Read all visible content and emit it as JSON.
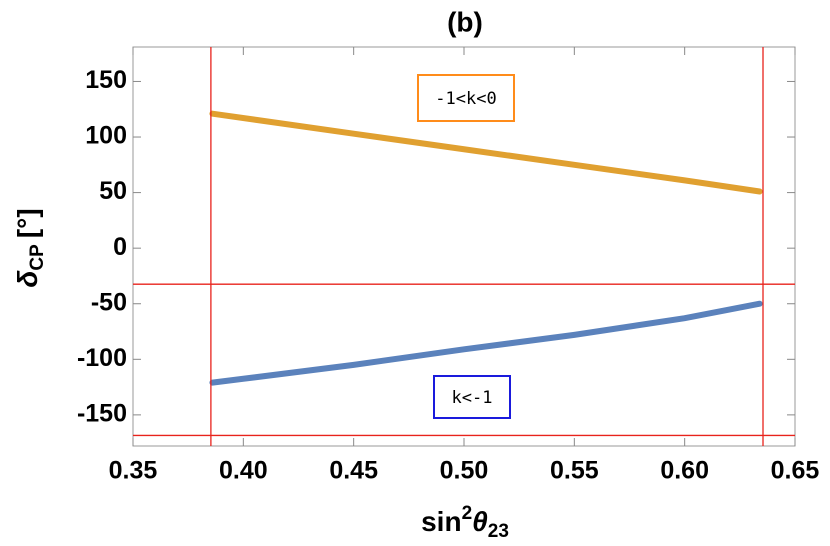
{
  "chart_data": {
    "type": "scatter",
    "title": "(b)",
    "x_label": {
      "base": "sin",
      "sup": "2",
      "symbol": "θ",
      "sub": "23"
    },
    "y_label": {
      "symbol": "δ",
      "sub": "CP",
      "unit": "[°]"
    },
    "xlim": [
      0.35,
      0.65
    ],
    "xticks": [
      0.35,
      {
        "value": 0.4,
        "label": "0.40"
      },
      0.45,
      {
        "value": 0.5,
        "label": "0.50"
      },
      0.55,
      {
        "value": 0.6,
        "label": "0.60"
      },
      0.65
    ],
    "ylim": [
      -178,
      181
    ],
    "yticks": [
      -150,
      -100,
      -50,
      0,
      50,
      100,
      150
    ],
    "series": [
      {
        "name": "-1<k<0",
        "color": "#e0a030",
        "x": [
          0.386,
          0.45,
          0.5,
          0.55,
          0.6,
          0.634
        ],
        "values": [
          121,
          103,
          89,
          75,
          61,
          51
        ]
      },
      {
        "name": "k<-1",
        "color": "#5b82bc",
        "x": [
          0.386,
          0.45,
          0.5,
          0.55,
          0.6,
          0.634
        ],
        "values": [
          -121,
          -105,
          -91,
          -78,
          -63,
          -50
        ]
      }
    ],
    "reference_lines": {
      "color": "#e8231c",
      "x": [
        0.3853,
        0.6355
      ],
      "y": [
        -32.4,
        -168.5
      ]
    },
    "annotation_colors": [
      "#ff8c1a",
      "#1a1adc"
    ]
  }
}
